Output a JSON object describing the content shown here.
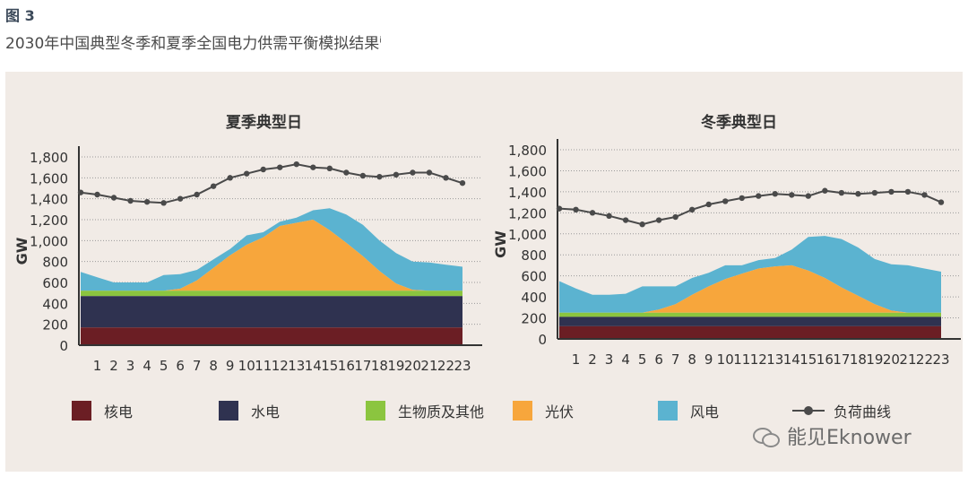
{
  "figure_label": "图 3",
  "figure_title": "2030年中国典型冬季和夏季全国电力供需平衡模拟结果",
  "figure_title_sup": "i",
  "colors": {
    "nuclear": "#6b1e24",
    "hydro": "#2f3250",
    "bio": "#8bc53f",
    "solar": "#f7a63c",
    "wind": "#5bb3d0",
    "load": "#4a4a4a",
    "grid": "#9a9a9a",
    "axis": "#333333"
  },
  "legend": [
    {
      "key": "nuclear",
      "label": "核电"
    },
    {
      "key": "hydro",
      "label": "水电"
    },
    {
      "key": "bio",
      "label": "生物质及其他"
    },
    {
      "key": "solar",
      "label": "光伏"
    },
    {
      "key": "wind",
      "label": "风电"
    },
    {
      "key": "load",
      "label": "负荷曲线"
    }
  ],
  "watermark": "能见Eknower",
  "chart_data": [
    {
      "type": "area",
      "title": "夏季典型日",
      "ylabel": "GW",
      "ylim": [
        0,
        1800
      ],
      "yticks": [
        "0",
        "200",
        "400",
        "600",
        "800",
        "1,000",
        "1,200",
        "1,400",
        "1,600",
        "1,800"
      ],
      "x": [
        0,
        1,
        2,
        3,
        4,
        5,
        6,
        7,
        8,
        9,
        10,
        11,
        12,
        13,
        14,
        15,
        16,
        17,
        18,
        19,
        20,
        21,
        22,
        23
      ],
      "xtick_labels": [
        "1",
        "2",
        "3",
        "4",
        "5",
        "6",
        "7",
        "8",
        "9",
        "10",
        "11",
        "12",
        "13",
        "14",
        "15",
        "16",
        "17",
        "18",
        "19",
        "20",
        "21",
        "22",
        "23"
      ],
      "stack_tops": {
        "nuclear": [
          170,
          170,
          170,
          170,
          170,
          170,
          170,
          170,
          170,
          170,
          170,
          170,
          170,
          170,
          170,
          170,
          170,
          170,
          170,
          170,
          170,
          170,
          170,
          170
        ],
        "hydro": [
          470,
          470,
          470,
          470,
          470,
          470,
          470,
          470,
          470,
          470,
          470,
          470,
          470,
          470,
          470,
          470,
          470,
          470,
          470,
          470,
          470,
          470,
          470,
          470
        ],
        "bio": [
          520,
          520,
          520,
          520,
          520,
          520,
          520,
          520,
          520,
          520,
          520,
          520,
          520,
          520,
          520,
          520,
          520,
          520,
          520,
          520,
          520,
          520,
          520,
          520
        ],
        "solar": [
          520,
          520,
          520,
          520,
          520,
          520,
          540,
          620,
          740,
          860,
          960,
          1030,
          1140,
          1170,
          1200,
          1100,
          980,
          850,
          710,
          590,
          530,
          520,
          520,
          520
        ],
        "wind": [
          700,
          650,
          600,
          600,
          600,
          670,
          680,
          720,
          820,
          920,
          1050,
          1080,
          1180,
          1220,
          1290,
          1310,
          1250,
          1150,
          1000,
          880,
          800,
          790,
          770,
          750
        ]
      },
      "load": [
        1460,
        1440,
        1410,
        1380,
        1370,
        1360,
        1400,
        1440,
        1520,
        1600,
        1640,
        1680,
        1700,
        1730,
        1700,
        1690,
        1650,
        1620,
        1610,
        1630,
        1650,
        1650,
        1600,
        1550
      ]
    },
    {
      "type": "area",
      "title": "冬季典型日",
      "ylabel": "GW",
      "ylim": [
        0,
        1800
      ],
      "yticks": [
        "0",
        "200",
        "400",
        "600",
        "800",
        "1,000",
        "1,200",
        "1,400",
        "1,600",
        "1,800"
      ],
      "x": [
        0,
        1,
        2,
        3,
        4,
        5,
        6,
        7,
        8,
        9,
        10,
        11,
        12,
        13,
        14,
        15,
        16,
        17,
        18,
        19,
        20,
        21,
        22,
        23
      ],
      "xtick_labels": [
        "1",
        "2",
        "3",
        "4",
        "5",
        "6",
        "7",
        "8",
        "9",
        "10",
        "11",
        "12",
        "13",
        "14",
        "15",
        "16",
        "17",
        "18",
        "19",
        "20",
        "21",
        "22",
        "23"
      ],
      "stack_tops": {
        "nuclear": [
          120,
          120,
          120,
          120,
          120,
          120,
          120,
          120,
          120,
          120,
          120,
          120,
          120,
          120,
          120,
          120,
          120,
          120,
          120,
          120,
          120,
          120,
          120,
          120
        ],
        "hydro": [
          210,
          210,
          210,
          210,
          210,
          210,
          210,
          210,
          210,
          210,
          210,
          210,
          210,
          210,
          210,
          210,
          210,
          210,
          210,
          210,
          210,
          210,
          210,
          210
        ],
        "bio": [
          250,
          250,
          250,
          250,
          250,
          250,
          250,
          250,
          250,
          250,
          250,
          250,
          250,
          250,
          250,
          250,
          250,
          250,
          250,
          250,
          250,
          250,
          250,
          250
        ],
        "solar": [
          250,
          250,
          250,
          250,
          250,
          250,
          280,
          330,
          420,
          500,
          570,
          620,
          670,
          690,
          700,
          650,
          580,
          490,
          410,
          330,
          270,
          250,
          250,
          250
        ],
        "wind": [
          550,
          480,
          420,
          420,
          430,
          500,
          500,
          500,
          580,
          630,
          700,
          700,
          750,
          770,
          850,
          970,
          980,
          950,
          870,
          760,
          710,
          700,
          670,
          640
        ]
      },
      "load": [
        1240,
        1230,
        1200,
        1170,
        1130,
        1090,
        1130,
        1160,
        1230,
        1280,
        1310,
        1340,
        1360,
        1380,
        1370,
        1360,
        1410,
        1390,
        1380,
        1390,
        1400,
        1400,
        1370,
        1300
      ]
    }
  ]
}
